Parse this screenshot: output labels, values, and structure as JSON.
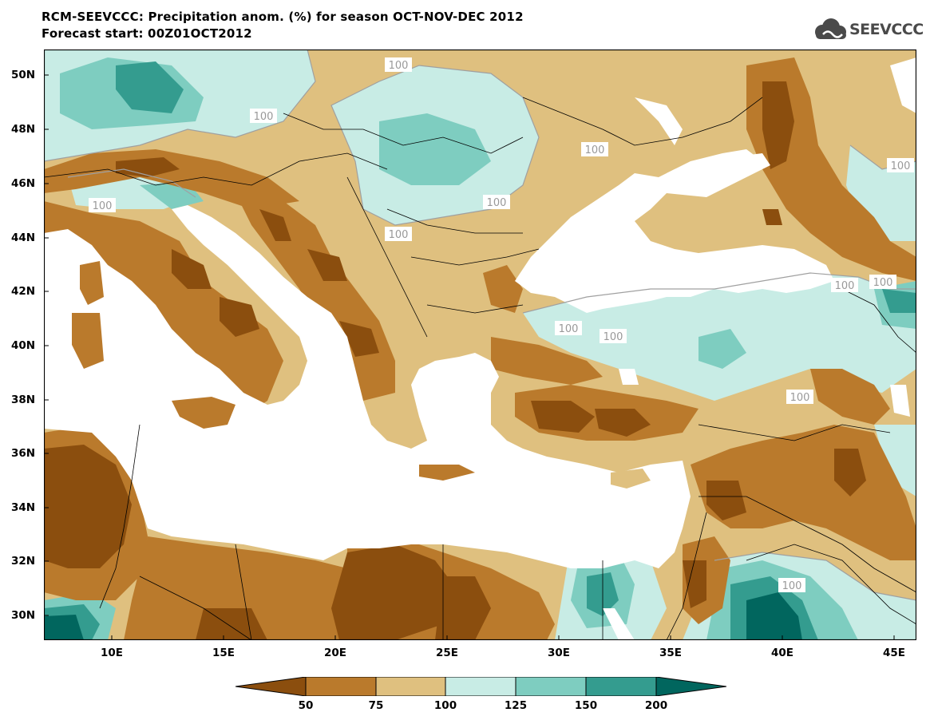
{
  "title": {
    "line1": "RCM-SEEVCCC: Precipitation anom. (%) for season OCT-NOV-DEC 2012",
    "line2": "Forecast start: 00Z01OCT2012"
  },
  "logo": {
    "text": "SEEVCCC",
    "icon": "cloud-logo-icon"
  },
  "axes": {
    "y_ticks": [
      "50N",
      "48N",
      "46N",
      "44N",
      "42N",
      "40N",
      "38N",
      "36N",
      "34N",
      "32N",
      "30N"
    ],
    "x_ticks": [
      "10E",
      "15E",
      "20E",
      "25E",
      "30E",
      "35E",
      "40E",
      "45E"
    ]
  },
  "legend": {
    "colors": [
      "#8B4E0E",
      "#BA7A2C",
      "#DFC07F",
      "#C8ECE5",
      "#7ECDC0",
      "#349C8F",
      "#01665E"
    ],
    "labels": [
      "50",
      "75",
      "100",
      "125",
      "150",
      "200"
    ]
  },
  "contour_label": "100",
  "colors": {
    "sea": "#ffffff",
    "dry_strong": "#8B4E0E",
    "dry": "#BA7A2C",
    "dry_weak": "#DFC07F",
    "wet_weak": "#C8ECE5",
    "wet": "#7ECDC0",
    "wet_strong": "#349C8F",
    "wet_extreme": "#01665E"
  }
}
